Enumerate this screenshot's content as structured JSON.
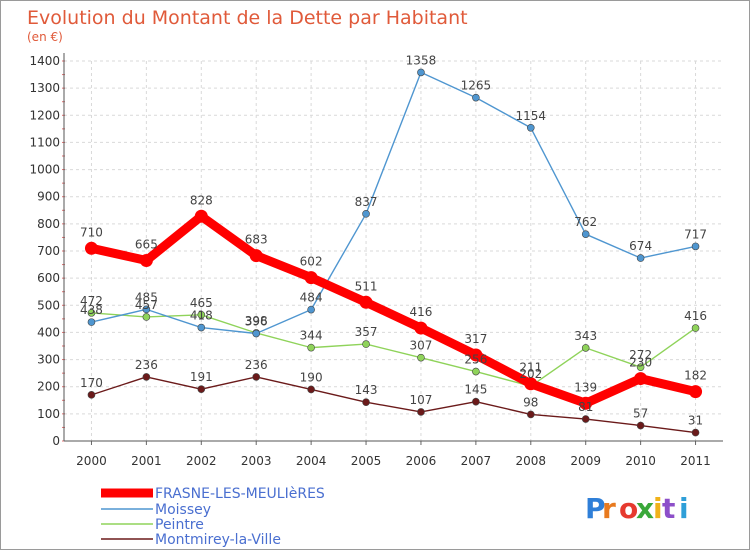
{
  "chart_data": {
    "type": "line",
    "title": "Evolution du Montant de la Dette par Habitant",
    "subtitle": "(en €)",
    "x": [
      "2000",
      "2001",
      "2002",
      "2003",
      "2004",
      "2005",
      "2006",
      "2007",
      "2008",
      "2009",
      "2010",
      "2011"
    ],
    "ylim": [
      0,
      1400
    ],
    "yticks": [
      0,
      100,
      200,
      300,
      400,
      500,
      600,
      700,
      800,
      900,
      1000,
      1100,
      1200,
      1300,
      1400
    ],
    "grid": true,
    "legend_position": "bottom-left",
    "series": [
      {
        "name": "FRASNE-LES-MEULIèRES",
        "color": "#ff0000",
        "values": [
          710,
          665,
          828,
          683,
          602,
          511,
          416,
          317,
          211,
          139,
          230,
          182
        ]
      },
      {
        "name": "Moissey",
        "color": "#4f96d0",
        "values": [
          438,
          485,
          418,
          396,
          484,
          837,
          1358,
          1265,
          1154,
          762,
          674,
          717
        ]
      },
      {
        "name": "Peintre",
        "color": "#8fd35a",
        "values": [
          472,
          457,
          465,
          398,
          344,
          357,
          307,
          256,
          202,
          343,
          272,
          416
        ]
      },
      {
        "name": "Montmirey-la-Ville",
        "color": "#6b1a1a",
        "values": [
          170,
          236,
          191,
          236,
          190,
          143,
          107,
          145,
          98,
          81,
          57,
          31
        ]
      }
    ]
  },
  "logo": {
    "text": "Proxiti"
  }
}
